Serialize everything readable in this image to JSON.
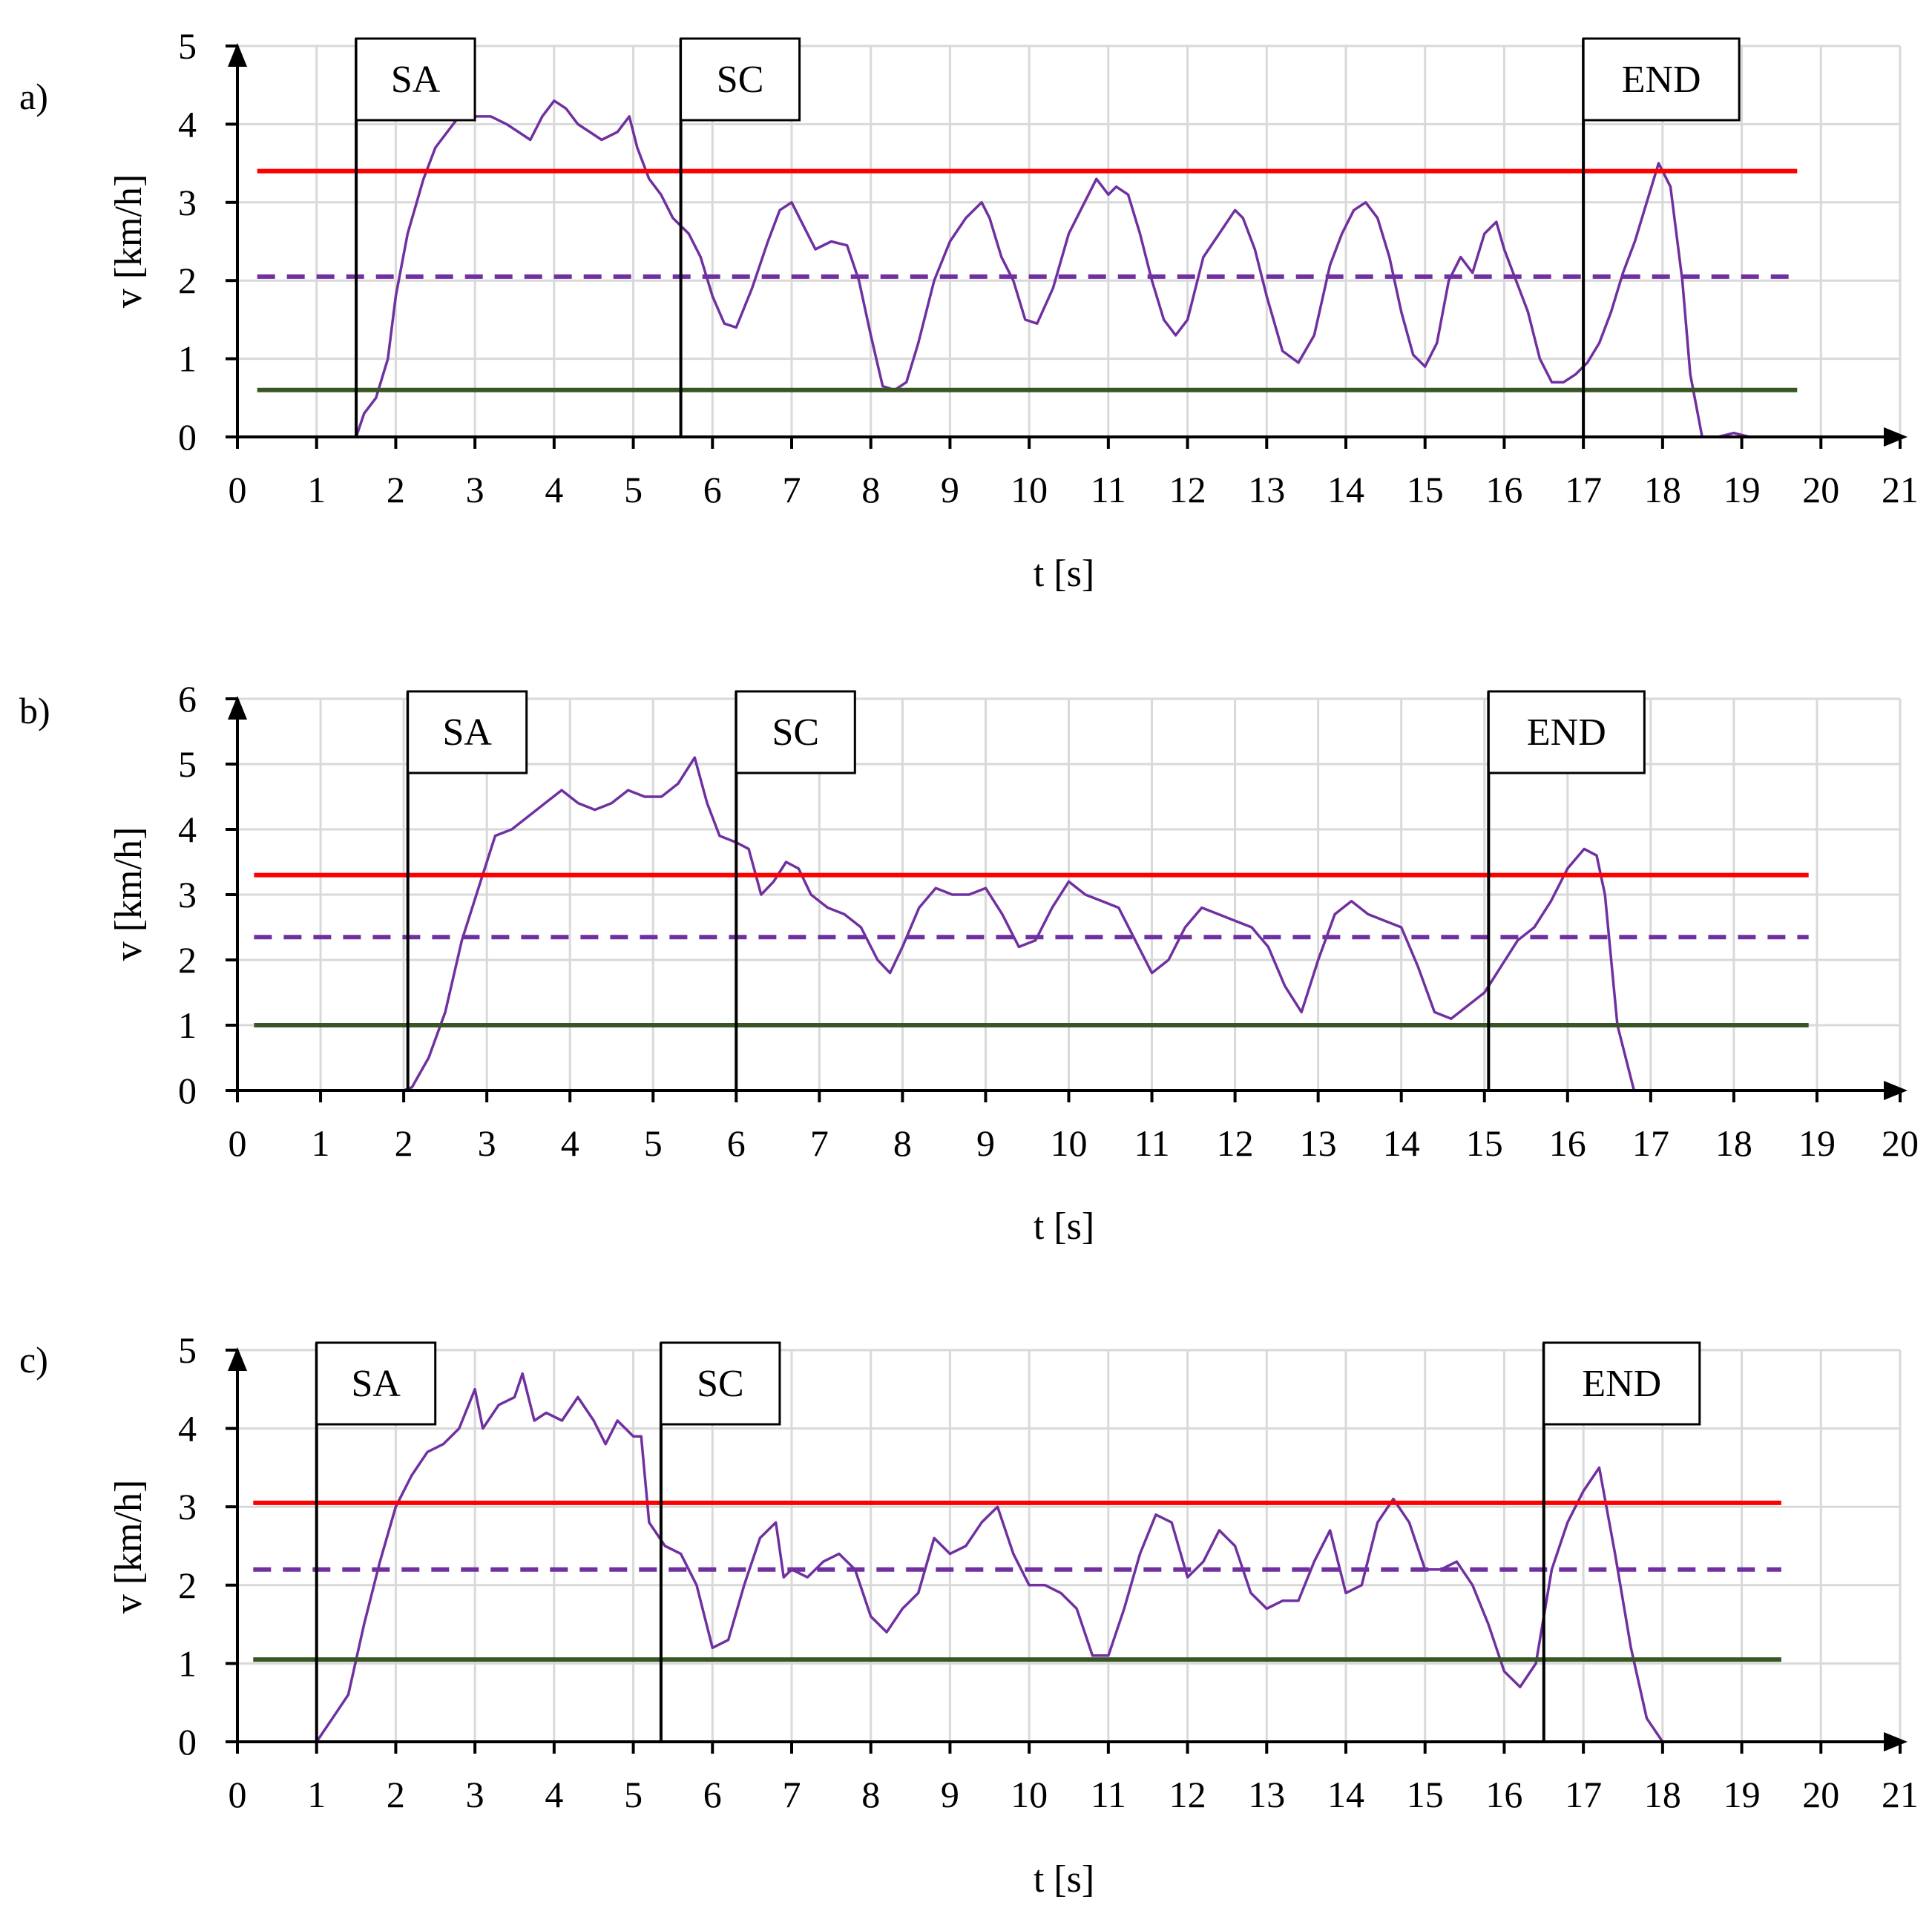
{
  "figure": {
    "panels": [
      {
        "label": "a)",
        "xlabel": "t [s]",
        "ylabel": "v [km/h]"
      },
      {
        "label": "b)",
        "xlabel": "t [s]",
        "ylabel": "v [km/h]"
      },
      {
        "label": "c)",
        "xlabel": "t [s]",
        "ylabel": "v [km/h]"
      }
    ]
  },
  "colors": {
    "speed": "#7030A0",
    "mean": "#7030A0",
    "upper": "#FF0000",
    "lower": "#375623",
    "grid": "#D9D9D9",
    "axis": "#000000"
  },
  "chart_data": [
    {
      "type": "line",
      "panel": "a)",
      "xlabel": "t [s]",
      "ylabel": "v [km/h]",
      "xlim": [
        0,
        21
      ],
      "ylim": [
        0,
        5
      ],
      "xticks": [
        "0",
        "1",
        "2",
        "3",
        "4",
        "5",
        "6",
        "7",
        "8",
        "9",
        "10",
        "11",
        "12",
        "13",
        "14",
        "15",
        "16",
        "17",
        "18",
        "19",
        "20",
        "21"
      ],
      "yticks": [
        "0",
        "1",
        "2",
        "3",
        "4",
        "5"
      ],
      "grid": true,
      "series": [
        {
          "name": "speed",
          "style": "solid",
          "x": [
            0.25,
            1.0,
            1.4,
            1.5,
            1.6,
            1.75,
            1.9,
            2.0,
            2.15,
            2.35,
            2.5,
            2.65,
            2.8,
            3.0,
            3.2,
            3.4,
            3.55,
            3.7,
            3.85,
            4.0,
            4.15,
            4.3,
            4.45,
            4.6,
            4.8,
            4.95,
            5.05,
            5.2,
            5.35,
            5.5,
            5.7,
            5.85,
            6.0,
            6.15,
            6.3,
            6.5,
            6.7,
            6.85,
            7.0,
            7.15,
            7.3,
            7.5,
            7.7,
            7.85,
            8.0,
            8.15,
            8.3,
            8.45,
            8.6,
            8.8,
            9.0,
            9.2,
            9.4,
            9.5,
            9.65,
            9.8,
            9.95,
            10.1,
            10.3,
            10.5,
            10.7,
            10.85,
            11.0,
            11.1,
            11.25,
            11.4,
            11.55,
            11.7,
            11.85,
            12.0,
            12.2,
            12.4,
            12.6,
            12.7,
            12.85,
            13.0,
            13.2,
            13.4,
            13.6,
            13.8,
            13.95,
            14.1,
            14.25,
            14.4,
            14.55,
            14.7,
            14.85,
            15.0,
            15.15,
            15.3,
            15.45,
            15.6,
            15.75,
            15.9,
            16.0,
            16.15,
            16.3,
            16.45,
            16.6,
            16.75,
            16.9,
            17.05,
            17.2,
            17.35,
            17.5,
            17.65,
            17.8,
            17.95,
            18.1,
            18.25,
            18.35,
            18.5,
            18.7,
            18.9,
            19.1,
            19.3,
            19.5,
            19.7
          ],
          "y": [
            0,
            0,
            0,
            0,
            0.3,
            0.5,
            1.0,
            1.8,
            2.6,
            3.3,
            3.7,
            3.9,
            4.1,
            4.1,
            4.1,
            4.0,
            3.9,
            3.8,
            4.1,
            4.3,
            4.2,
            4.0,
            3.9,
            3.8,
            3.9,
            4.1,
            3.7,
            3.3,
            3.1,
            2.8,
            2.6,
            2.3,
            1.8,
            1.45,
            1.4,
            1.9,
            2.5,
            2.9,
            3.0,
            2.7,
            2.4,
            2.5,
            2.45,
            2.0,
            1.3,
            0.65,
            0.6,
            0.7,
            1.2,
            2.0,
            2.5,
            2.8,
            3.0,
            2.8,
            2.3,
            2.0,
            1.5,
            1.45,
            1.9,
            2.6,
            3.0,
            3.3,
            3.1,
            3.2,
            3.1,
            2.6,
            2.0,
            1.5,
            1.3,
            1.5,
            2.3,
            2.6,
            2.9,
            2.8,
            2.4,
            1.8,
            1.1,
            0.95,
            1.3,
            2.2,
            2.6,
            2.9,
            3.0,
            2.8,
            2.3,
            1.6,
            1.05,
            0.9,
            1.2,
            2.0,
            2.3,
            2.1,
            2.6,
            2.75,
            2.4,
            2.0,
            1.6,
            1.0,
            0.7,
            0.7,
            0.8,
            0.95,
            1.2,
            1.6,
            2.1,
            2.5,
            3.0,
            3.5,
            3.2,
            2.0,
            0.8,
            0,
            0,
            0.05,
            0,
            0,
            0,
            0
          ]
        },
        {
          "name": "mean",
          "style": "dashed",
          "x": [
            0.25,
            19.7
          ],
          "y": [
            2.05,
            2.05
          ]
        },
        {
          "name": "upper",
          "style": "solid",
          "x": [
            0.25,
            19.7
          ],
          "y": [
            3.4,
            3.4
          ]
        },
        {
          "name": "lower",
          "style": "solid",
          "x": [
            0.25,
            19.7
          ],
          "y": [
            0.6,
            0.6
          ]
        }
      ],
      "markers": [
        {
          "label": "SA",
          "t": 1.5
        },
        {
          "label": "SC",
          "t": 5.6
        },
        {
          "label": "END",
          "t": 17.0
        }
      ]
    },
    {
      "type": "line",
      "panel": "b)",
      "xlabel": "t [s]",
      "ylabel": "v [km/h]",
      "xlim": [
        0,
        20
      ],
      "ylim": [
        0,
        6
      ],
      "xticks": [
        "0",
        "1",
        "2",
        "3",
        "4",
        "5",
        "6",
        "7",
        "8",
        "9",
        "10",
        "11",
        "12",
        "13",
        "14",
        "15",
        "16",
        "17",
        "18",
        "19",
        "20"
      ],
      "yticks": [
        "0",
        "1",
        "2",
        "3",
        "4",
        "5",
        "6"
      ],
      "grid": true,
      "series": [
        {
          "name": "speed",
          "style": "solid",
          "x": [
            0.2,
            1.5,
            2.0,
            2.1,
            2.3,
            2.5,
            2.7,
            2.9,
            3.1,
            3.3,
            3.5,
            3.7,
            3.9,
            4.1,
            4.3,
            4.5,
            4.7,
            4.9,
            5.1,
            5.3,
            5.5,
            5.65,
            5.8,
            6.0,
            6.15,
            6.3,
            6.45,
            6.6,
            6.75,
            6.9,
            7.1,
            7.3,
            7.5,
            7.7,
            7.85,
            8.0,
            8.2,
            8.4,
            8.6,
            8.8,
            9.0,
            9.2,
            9.4,
            9.6,
            9.8,
            10.0,
            10.2,
            10.4,
            10.6,
            10.8,
            11.0,
            11.2,
            11.4,
            11.6,
            11.8,
            12.0,
            12.2,
            12.4,
            12.6,
            12.8,
            13.0,
            13.2,
            13.4,
            13.6,
            13.8,
            14.0,
            14.2,
            14.4,
            14.6,
            14.8,
            15.0,
            15.2,
            15.4,
            15.6,
            15.8,
            16.0,
            16.2,
            16.35,
            16.45,
            16.6,
            16.8,
            17.2,
            18.0,
            18.9
          ],
          "y": [
            0,
            0,
            0,
            0.05,
            0.5,
            1.2,
            2.3,
            3.1,
            3.9,
            4.0,
            4.2,
            4.4,
            4.6,
            4.4,
            4.3,
            4.4,
            4.6,
            4.5,
            4.5,
            4.7,
            5.1,
            4.4,
            3.9,
            3.8,
            3.7,
            3.0,
            3.2,
            3.5,
            3.4,
            3.0,
            2.8,
            2.7,
            2.5,
            2.0,
            1.8,
            2.2,
            2.8,
            3.1,
            3.0,
            3.0,
            3.1,
            2.7,
            2.2,
            2.3,
            2.8,
            3.2,
            3.0,
            2.9,
            2.8,
            2.3,
            1.8,
            2.0,
            2.5,
            2.8,
            2.7,
            2.6,
            2.5,
            2.2,
            1.6,
            1.2,
            2.0,
            2.7,
            2.9,
            2.7,
            2.6,
            2.5,
            1.9,
            1.2,
            1.1,
            1.3,
            1.5,
            1.9,
            2.3,
            2.5,
            2.9,
            3.4,
            3.7,
            3.6,
            3.0,
            1.0,
            0,
            0,
            0,
            0
          ]
        },
        {
          "name": "mean",
          "style": "dashed",
          "x": [
            0.2,
            18.9
          ],
          "y": [
            2.35,
            2.35
          ]
        },
        {
          "name": "upper",
          "style": "solid",
          "x": [
            0.2,
            18.9
          ],
          "y": [
            3.3,
            3.3
          ]
        },
        {
          "name": "lower",
          "style": "solid",
          "x": [
            0.2,
            18.9
          ],
          "y": [
            1.0,
            1.0
          ]
        }
      ],
      "markers": [
        {
          "label": "SA",
          "t": 2.05
        },
        {
          "label": "SC",
          "t": 6.0
        },
        {
          "label": "END",
          "t": 15.05
        }
      ]
    },
    {
      "type": "line",
      "panel": "c)",
      "xlabel": "t [s]",
      "ylabel": "v [km/h]",
      "xlim": [
        0,
        21
      ],
      "ylim": [
        0,
        5
      ],
      "xticks": [
        "0",
        "1",
        "2",
        "3",
        "4",
        "5",
        "6",
        "7",
        "8",
        "9",
        "10",
        "11",
        "12",
        "13",
        "14",
        "15",
        "16",
        "17",
        "18",
        "19",
        "20",
        "21"
      ],
      "yticks": [
        "0",
        "1",
        "2",
        "3",
        "4",
        "5"
      ],
      "grid": true,
      "series": [
        {
          "name": "speed",
          "style": "solid",
          "x": [
            0.2,
            0.9,
            1.0,
            1.2,
            1.4,
            1.6,
            1.8,
            2.0,
            2.2,
            2.4,
            2.6,
            2.8,
            3.0,
            3.1,
            3.3,
            3.5,
            3.6,
            3.75,
            3.9,
            4.1,
            4.3,
            4.5,
            4.65,
            4.8,
            5.0,
            5.1,
            5.2,
            5.4,
            5.6,
            5.8,
            6.0,
            6.2,
            6.4,
            6.6,
            6.8,
            6.9,
            7.0,
            7.2,
            7.4,
            7.6,
            7.8,
            8.0,
            8.2,
            8.4,
            8.6,
            8.8,
            9.0,
            9.2,
            9.4,
            9.6,
            9.8,
            10.0,
            10.2,
            10.4,
            10.6,
            10.8,
            11.0,
            11.2,
            11.4,
            11.6,
            11.8,
            12.0,
            12.2,
            12.4,
            12.6,
            12.8,
            13.0,
            13.2,
            13.4,
            13.6,
            13.8,
            14.0,
            14.2,
            14.4,
            14.6,
            14.8,
            15.0,
            15.2,
            15.4,
            15.6,
            15.8,
            16.0,
            16.2,
            16.4,
            16.6,
            16.8,
            17.0,
            17.2,
            17.4,
            17.6,
            17.8,
            18.0,
            18.5,
            19.5
          ],
          "y": [
            0,
            0,
            0,
            0.3,
            0.6,
            1.5,
            2.3,
            3.0,
            3.4,
            3.7,
            3.8,
            4.0,
            4.5,
            4.0,
            4.3,
            4.4,
            4.7,
            4.1,
            4.2,
            4.1,
            4.4,
            4.1,
            3.8,
            4.1,
            3.9,
            3.9,
            2.8,
            2.5,
            2.4,
            2.0,
            1.2,
            1.3,
            2.0,
            2.6,
            2.8,
            2.1,
            2.2,
            2.1,
            2.3,
            2.4,
            2.2,
            1.6,
            1.4,
            1.7,
            1.9,
            2.6,
            2.4,
            2.5,
            2.8,
            3.0,
            2.4,
            2.0,
            2.0,
            1.9,
            1.7,
            1.1,
            1.1,
            1.7,
            2.4,
            2.9,
            2.8,
            2.1,
            2.3,
            2.7,
            2.5,
            1.9,
            1.7,
            1.8,
            1.8,
            2.3,
            2.7,
            1.9,
            2.0,
            2.8,
            3.1,
            2.8,
            2.2,
            2.2,
            2.3,
            2.0,
            1.5,
            0.9,
            0.7,
            1.0,
            2.2,
            2.8,
            3.2,
            3.5,
            2.4,
            1.2,
            0.3,
            0,
            0,
            0
          ]
        },
        {
          "name": "mean",
          "style": "dashed",
          "x": [
            0.2,
            19.5
          ],
          "y": [
            2.2,
            2.2
          ]
        },
        {
          "name": "upper",
          "style": "solid",
          "x": [
            0.2,
            19.5
          ],
          "y": [
            3.05,
            3.05
          ]
        },
        {
          "name": "lower",
          "style": "solid",
          "x": [
            0.2,
            19.5
          ],
          "y": [
            1.05,
            1.05
          ]
        }
      ],
      "markers": [
        {
          "label": "SA",
          "t": 1.0
        },
        {
          "label": "SC",
          "t": 5.35
        },
        {
          "label": "END",
          "t": 16.5
        }
      ]
    }
  ]
}
